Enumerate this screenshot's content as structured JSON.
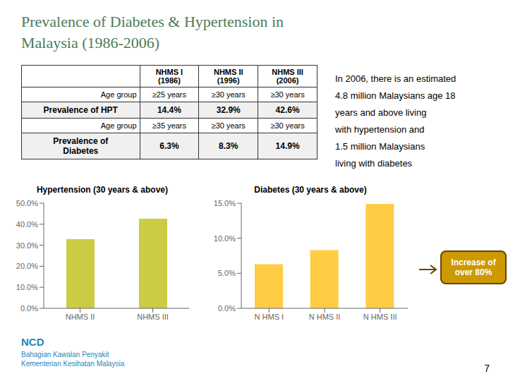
{
  "title": "Prevalence of Diabetes & Hypertension in\nMalaysia (1986-2006)",
  "table": {
    "headers": [
      "",
      "NHMS I\n(1986)",
      "NHMS II\n(1996)",
      "NHMS III\n(2006)"
    ],
    "rows": [
      [
        "Age group",
        "≥25 years",
        "≥30 years",
        "≥30 years"
      ],
      [
        "Prevalence of HPT",
        "14.4%",
        "32.9%",
        "42.6%"
      ],
      [
        "Age group",
        "≥35 years",
        "≥30 years",
        "≥30 years"
      ],
      [
        "Prevalence of\nDiabetes",
        "6.3%",
        "8.3%",
        "14.9%"
      ]
    ]
  },
  "side_text": [
    "In 2006, there is an estimated",
    "4.8 million Malaysians age 18",
    "years and above living",
    "with hypertension and",
    "1.5 million Malaysians",
    "living with diabetes"
  ],
  "callout": "Increase of\nover 80%",
  "footer": "Bahagian Kawalan Penyakit\nKementerian Kesihatan Malaysia",
  "logo": "NCD",
  "page_number": "7",
  "chart_data": [
    {
      "type": "bar",
      "title": "Hypertension (30 years & above)",
      "categories": [
        "NHMS II",
        "NHMS III"
      ],
      "values": [
        32.9,
        42.6
      ],
      "color": "#cccc44",
      "ylim": [
        0,
        50
      ],
      "yticks": [
        {
          "value": 0,
          "label": "0.0%"
        },
        {
          "value": 10,
          "label": "10.0%"
        },
        {
          "value": 20,
          "label": "20.0%"
        },
        {
          "value": 30,
          "label": "30.0%"
        },
        {
          "value": 40,
          "label": "40.0%"
        },
        {
          "value": 50,
          "label": "50.0%"
        }
      ]
    },
    {
      "type": "bar",
      "title": "Diabetes  (30 years & above)",
      "categories": [
        "N HMS I",
        "N HMS II",
        "N HMS III"
      ],
      "values": [
        6.3,
        8.3,
        14.9
      ],
      "color": "#ffcc44",
      "ylim": [
        0,
        15
      ],
      "yticks": [
        {
          "value": 0,
          "label": "0.0%"
        },
        {
          "value": 5,
          "label": "5.0%"
        },
        {
          "value": 10,
          "label": "10.0%"
        },
        {
          "value": 15,
          "label": "15.0%"
        }
      ]
    }
  ]
}
